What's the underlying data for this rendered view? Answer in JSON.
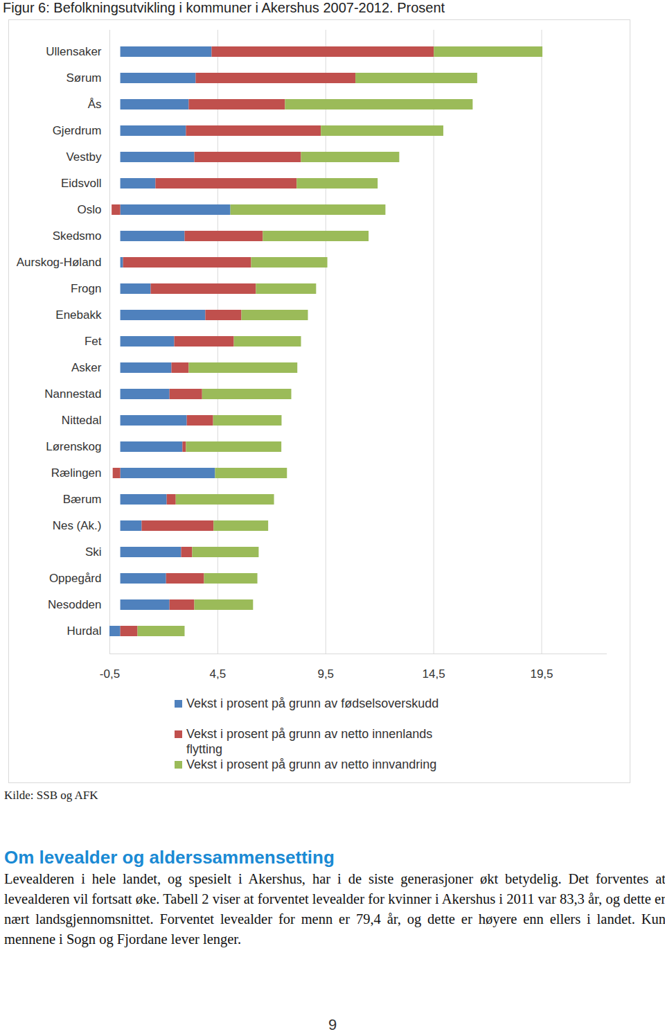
{
  "chart_data": {
    "type": "bar",
    "orientation": "horizontal",
    "stacked": true,
    "grid": true,
    "legend": "bottom",
    "title": "Figur 6: Befolkningsutvikling i kommuner i Akershus 2007-2012. Prosent",
    "categories": [
      "Ullensaker",
      "Sørum",
      "Ås",
      "Gjerdrum",
      "Vestby",
      "Eidsvoll",
      "Oslo",
      "Skedsmo",
      "Aurskog-Høland",
      "Frogn",
      "Enebakk",
      "Fet",
      "Asker",
      "Nannestad",
      "Nittedal",
      "Lørenskog",
      "Rælingen",
      "Bærum",
      "Nes (Ak.)",
      "Ski",
      "Oppegård",
      "Nesodden",
      "Hurdal"
    ],
    "series": [
      {
        "name": "Vekst i prosent på grunn av fødselsoverskudd",
        "color": "#4f81bd",
        "values": [
          4.23,
          3.49,
          3.17,
          3.04,
          3.43,
          1.63,
          5.1,
          2.98,
          0.13,
          1.41,
          3.94,
          2.5,
          2.37,
          2.28,
          3.08,
          2.88,
          4.39,
          2.15,
          0.99,
          2.82,
          2.12,
          2.28,
          -0.5
        ]
      },
      {
        "name": "Vekst i prosent på grunn av netto innenlands flytting",
        "color": "#c0504d",
        "values": [
          10.29,
          7.4,
          4.46,
          6.25,
          4.94,
          6.54,
          -0.4,
          3.62,
          5.93,
          4.87,
          1.67,
          2.76,
          0.8,
          1.51,
          1.22,
          0.16,
          -0.35,
          0.42,
          3.33,
          0.51,
          1.76,
          1.15,
          0.8
        ]
      },
      {
        "name": "Vekst i prosent på grunn av netto innvandring",
        "color": "#9bbb59",
        "values": [
          5.03,
          5.64,
          8.69,
          5.67,
          4.55,
          3.75,
          7.18,
          4.9,
          3.53,
          2.79,
          3.08,
          3.11,
          5.03,
          4.13,
          3.17,
          4.42,
          3.33,
          4.55,
          2.53,
          3.08,
          2.47,
          2.72,
          2.18
        ]
      }
    ],
    "xlim": [
      -0.5,
      22.5
    ],
    "xticks": [
      {
        "value": -0.5,
        "label": "-0,5"
      },
      {
        "value": 4.5,
        "label": "4,5"
      },
      {
        "value": 9.5,
        "label": "9,5"
      },
      {
        "value": 14.5,
        "label": "14,5"
      },
      {
        "value": 19.5,
        "label": "19,5"
      }
    ]
  },
  "document": {
    "source": "Kilde: SSB og AFK",
    "heading": "Om levealder og alderssammensetting",
    "paragraph": "Levealderen i hele landet, og spesielt i Akershus, har i de siste generasjoner økt betydelig. Det forventes at levealderen vil fortsatt øke. Tabell 2 viser at forventet levealder for kvinner i Akershus i 2011 var 83,3 år, og dette er nært landsgjennomsnittet. Forventet levealder for menn er 79,4 år, og dette er høyere enn ellers i landet. Kun mennene i Sogn og Fjordane lever lenger.",
    "page_number": "9"
  }
}
